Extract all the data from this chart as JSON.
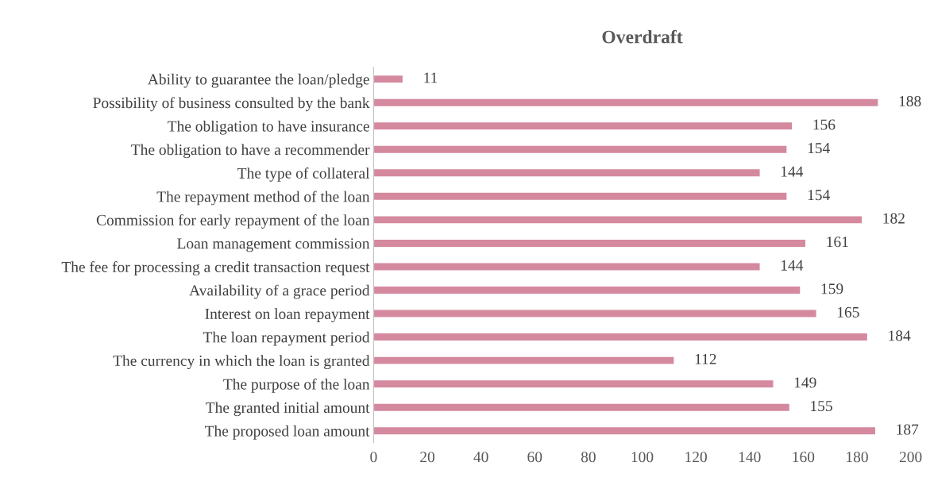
{
  "chart_data": {
    "type": "bar",
    "orientation": "horizontal",
    "title": "Overdraft",
    "categories": [
      "Ability to guarantee the loan/pledge",
      "Possibility of business consulted by the bank",
      "The obligation to have insurance",
      "The obligation to have a recommender",
      "The type of collateral",
      "The repayment method of the loan",
      "Commission for early repayment of the loan",
      "Loan management commission",
      "The fee for processing a credit transaction request",
      "Availability of a grace period",
      "Interest on loan repayment",
      "The loan repayment period",
      "The currency in which the loan is granted",
      "The purpose of the loan",
      "The granted initial amount",
      "The proposed loan amount"
    ],
    "values": [
      11,
      188,
      156,
      154,
      144,
      154,
      182,
      161,
      144,
      159,
      165,
      184,
      112,
      149,
      155,
      187
    ],
    "color": "#d4899f",
    "xlim": [
      0,
      200
    ],
    "xticks": [
      0,
      20,
      40,
      60,
      80,
      100,
      120,
      140,
      160,
      180,
      200
    ],
    "data_labels": true,
    "grid": false,
    "legend": false
  }
}
